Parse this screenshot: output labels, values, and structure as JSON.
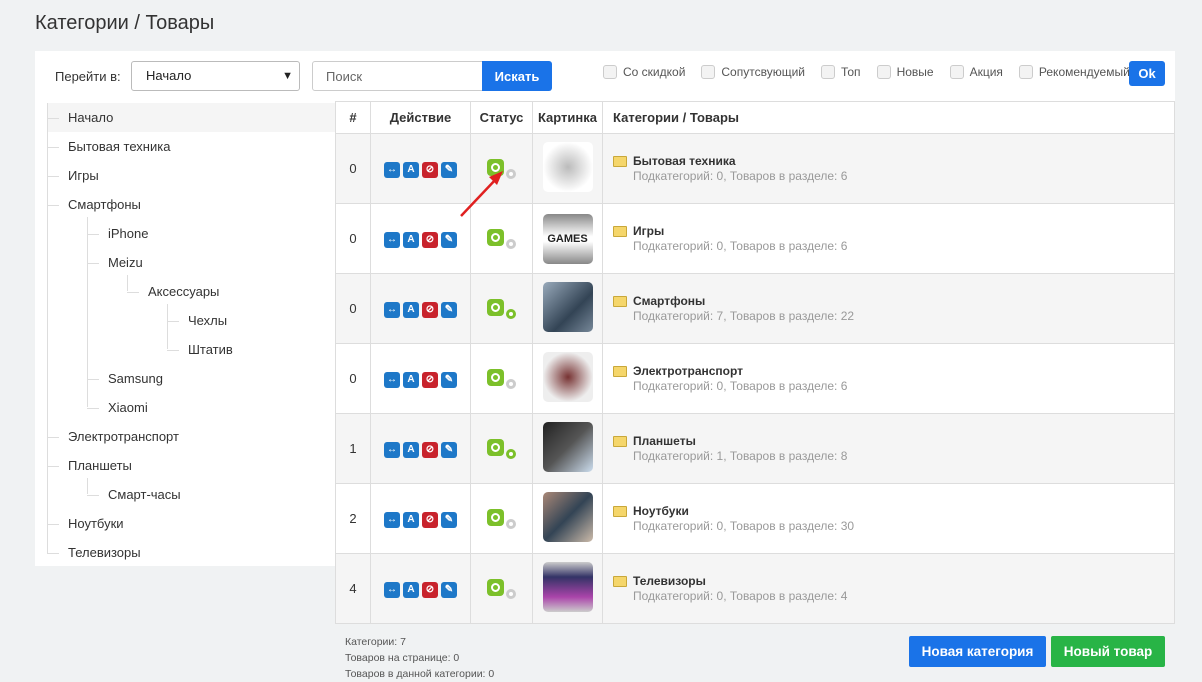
{
  "title": "Категории / Товары",
  "toolbar": {
    "goto_label": "Перейти в:",
    "goto_value": "Начало",
    "search_placeholder": "Поиск",
    "search_button": "Искать",
    "filters": [
      "Со скидкой",
      "Сопутсвующий",
      "Топ",
      "Новые",
      "Акция",
      "Рекомендуемый"
    ],
    "ok": "Ok"
  },
  "tree": [
    {
      "label": "Начало",
      "level": 0,
      "selected": true
    },
    {
      "label": "Бытовая техника",
      "level": 0
    },
    {
      "label": "Игры",
      "level": 0
    },
    {
      "label": "Смартфоны",
      "level": 0
    },
    {
      "label": "iPhone",
      "level": 1
    },
    {
      "label": "Meizu",
      "level": 1
    },
    {
      "label": "Аксессуары",
      "level": 2
    },
    {
      "label": "Чехлы",
      "level": 3
    },
    {
      "label": "Штатив",
      "level": 3
    },
    {
      "label": "Samsung",
      "level": 1
    },
    {
      "label": "Xiaomi",
      "level": 1
    },
    {
      "label": "Электротранспорт",
      "level": 0
    },
    {
      "label": "Планшеты",
      "level": 0
    },
    {
      "label": "Смарт-часы",
      "level": 1
    },
    {
      "label": "Ноутбуки",
      "level": 0
    },
    {
      "label": "Телевизоры",
      "level": 0
    }
  ],
  "table": {
    "headers": [
      "#",
      "Действие",
      "Статус",
      "Картинка",
      "Категории / Товары"
    ],
    "rows": [
      {
        "num": "0",
        "name": "Бытовая техника",
        "sub": "Подкатегорий: 0, Товаров в разделе: 6",
        "active": true,
        "secondary": false,
        "image": "appliances"
      },
      {
        "num": "0",
        "name": "Игры",
        "sub": "Подкатегорий: 0, Товаров в разделе: 6",
        "active": true,
        "secondary": false,
        "image": "games",
        "image_text": "GAMES"
      },
      {
        "num": "0",
        "name": "Смартфоны",
        "sub": "Подкатегорий: 7, Товаров в разделе: 22",
        "active": true,
        "secondary": true,
        "image": "smartphone"
      },
      {
        "num": "0",
        "name": "Электротранспорт",
        "sub": "Подкатегорий: 0, Товаров в разделе: 6",
        "active": true,
        "secondary": false,
        "image": "scooters"
      },
      {
        "num": "1",
        "name": "Планшеты",
        "sub": "Подкатегорий: 1, Товаров в разделе: 8",
        "active": true,
        "secondary": true,
        "image": "tablet"
      },
      {
        "num": "2",
        "name": "Ноутбуки",
        "sub": "Подкатегорий: 0, Товаров в разделе: 30",
        "active": true,
        "secondary": false,
        "image": "laptop"
      },
      {
        "num": "4",
        "name": "Телевизоры",
        "sub": "Подкатегорий: 0, Товаров в разделе: 4",
        "active": true,
        "secondary": false,
        "image": "tv"
      }
    ]
  },
  "stats": [
    "Категории: 7",
    "Товаров на странице: 0",
    "Товаров в данной категории: 0"
  ],
  "buttons": {
    "new_category": "Новая категория",
    "new_product": "Новый товар"
  },
  "colors": {
    "primary": "#1a73e8",
    "success": "#28b446",
    "status_active": "#7cc02a",
    "annotation_arrow": "#e02020"
  }
}
